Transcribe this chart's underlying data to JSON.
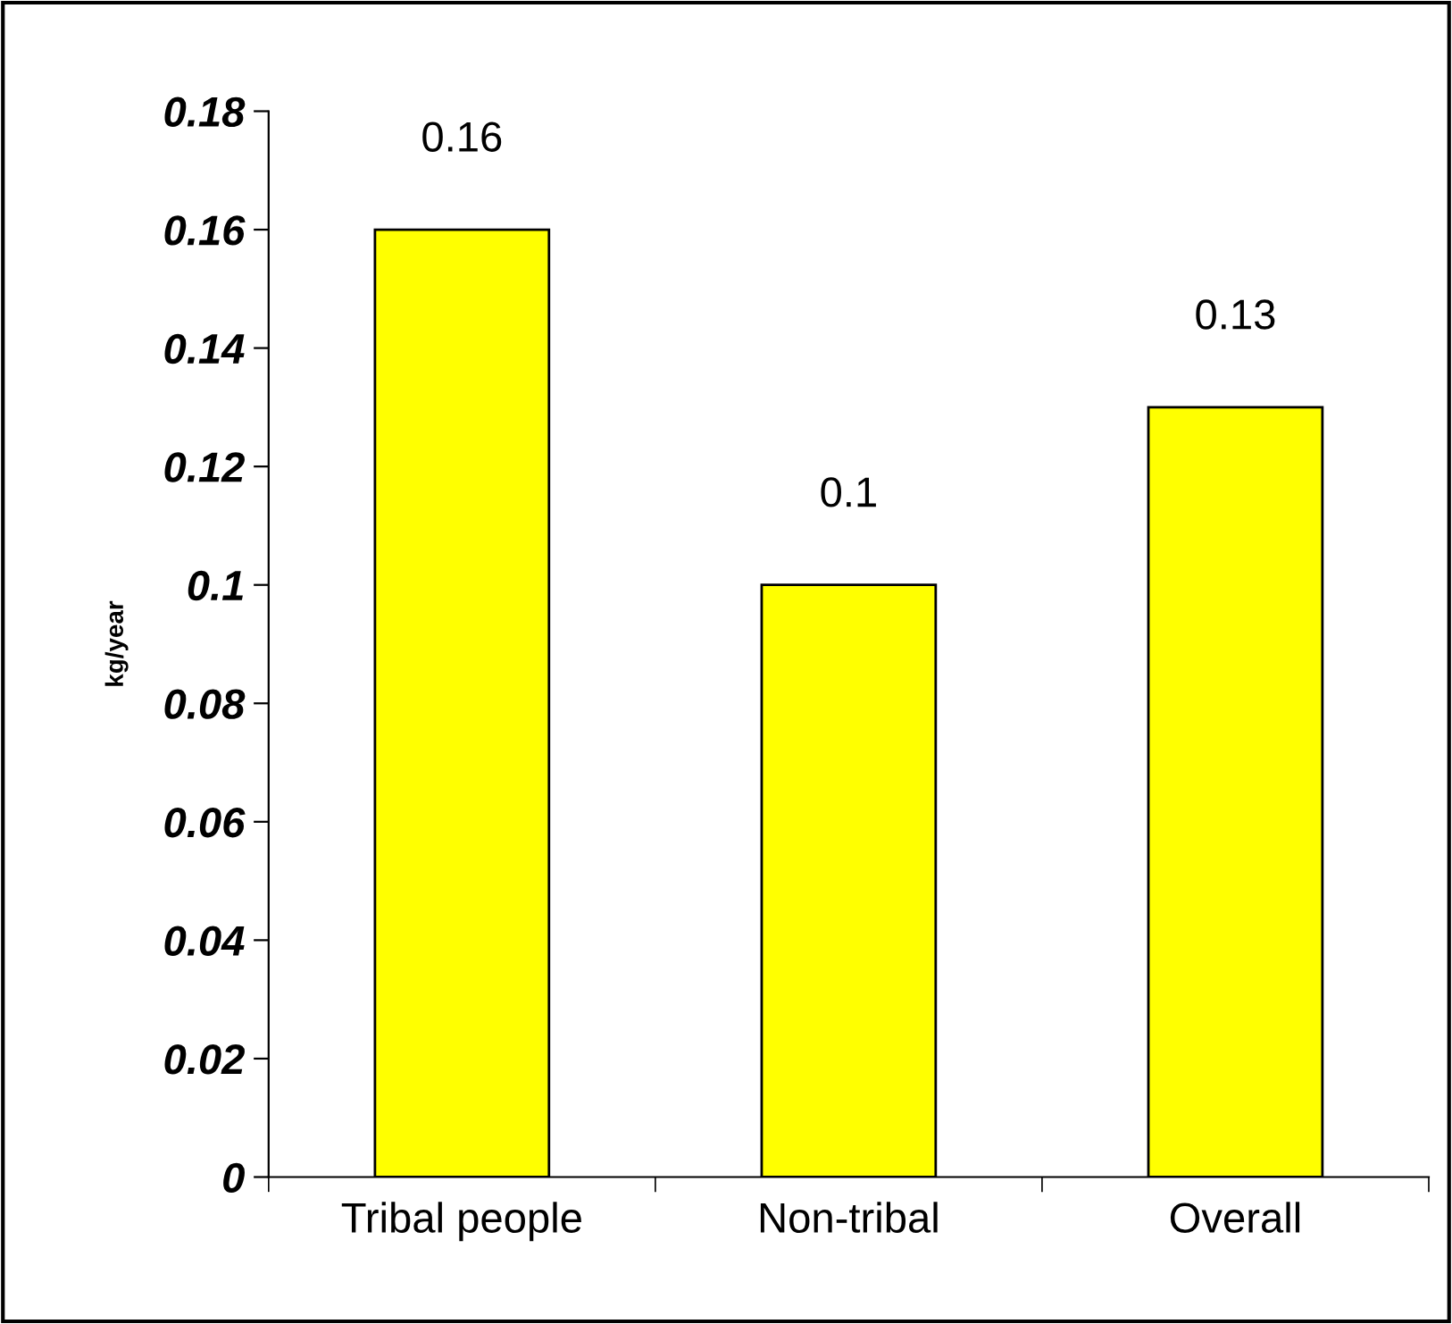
{
  "chart_data": {
    "type": "bar",
    "ylabel": "kg/year",
    "categories": [
      "Tribal people",
      "Non-tribal",
      "Overall"
    ],
    "values": [
      0.16,
      0.1,
      0.13
    ],
    "color": "#ffff00",
    "ylim": [
      0,
      0.18
    ],
    "yticks": [
      0,
      0.02,
      0.04,
      0.06,
      0.08,
      0.1,
      0.12,
      0.14,
      0.16,
      0.18
    ],
    "data_labels": true,
    "grid": false,
    "legend": false
  }
}
